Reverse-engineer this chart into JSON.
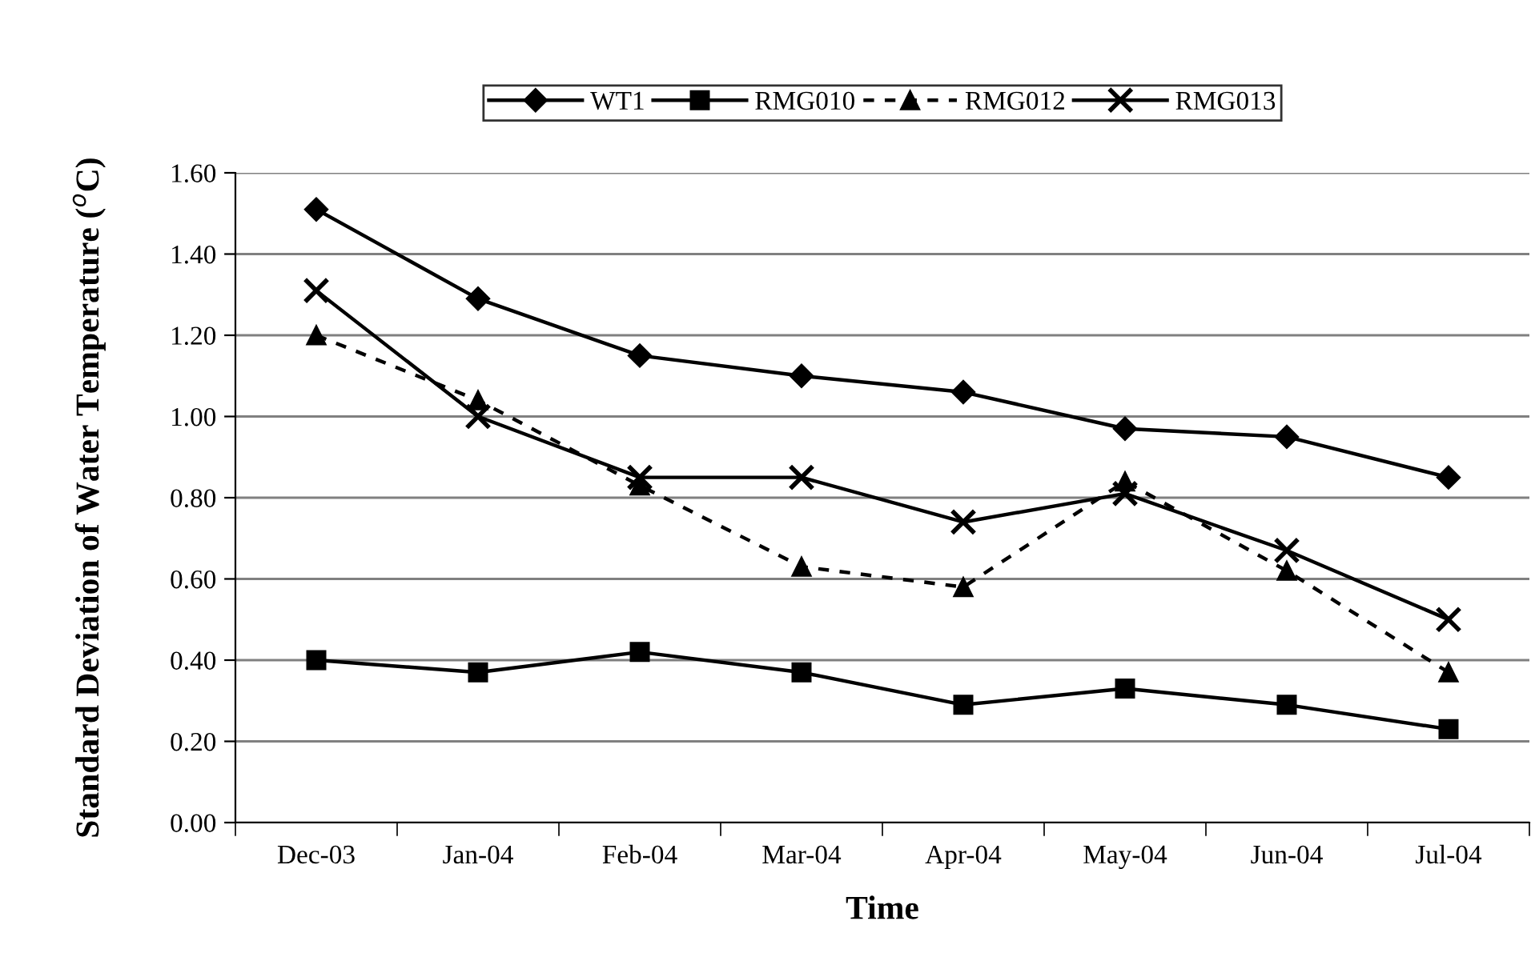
{
  "chart_data": {
    "type": "line",
    "xlabel": "Time",
    "ylabel": "Standard Deviation of Water Temperature ($^{o}$C)",
    "categories": [
      "Dec-03",
      "Jan-04",
      "Feb-04",
      "Mar-04",
      "Apr-04",
      "May-04",
      "Jun-04",
      "Jul-04"
    ],
    "series": [
      {
        "name": "WT1",
        "color": "#000000",
        "marker": "diamond",
        "line_style": "solid",
        "values": [
          1.51,
          1.29,
          1.15,
          1.1,
          1.06,
          0.97,
          0.95,
          0.85
        ]
      },
      {
        "name": "RMG010",
        "color": "#000000",
        "marker": "square",
        "line_style": "solid",
        "values": [
          0.4,
          0.37,
          0.42,
          0.37,
          0.29,
          0.33,
          0.29,
          0.23
        ]
      },
      {
        "name": "RMG012",
        "color": "#000000",
        "marker": "triangle",
        "line_style": "dashed",
        "values": [
          1.2,
          1.04,
          0.83,
          0.63,
          0.58,
          0.84,
          0.62,
          0.37
        ]
      },
      {
        "name": "RMG013",
        "color": "#000000",
        "marker": "cross",
        "line_style": "solid",
        "values": [
          1.31,
          1.0,
          0.85,
          0.85,
          0.74,
          0.81,
          0.67,
          0.5
        ]
      }
    ],
    "ylim": [
      0,
      1.6
    ],
    "yticks": [
      {
        "value": 0,
        "label": "0.00"
      },
      {
        "value": 0.2,
        "label": "0.20"
      },
      {
        "value": 0.4,
        "label": "0.40"
      },
      {
        "value": 0.6,
        "label": "0.60"
      },
      {
        "value": 0.8,
        "label": "0.80"
      },
      {
        "value": 1.0,
        "label": "1.00"
      },
      {
        "value": 1.2,
        "label": "1.20"
      },
      {
        "value": 1.4,
        "label": "1.40"
      },
      {
        "value": 1.6,
        "label": "1.60"
      }
    ],
    "grid": "y",
    "legend": "top"
  }
}
